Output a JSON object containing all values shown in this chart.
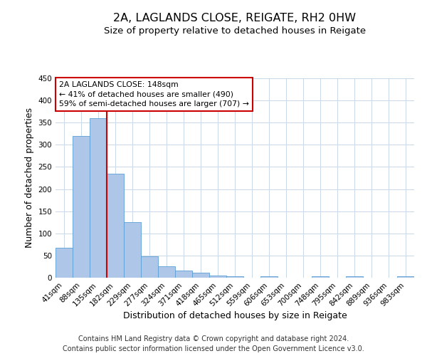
{
  "title": "2A, LAGLANDS CLOSE, REIGATE, RH2 0HW",
  "subtitle": "Size of property relative to detached houses in Reigate",
  "xlabel": "Distribution of detached houses by size in Reigate",
  "ylabel": "Number of detached properties",
  "bar_labels": [
    "41sqm",
    "88sqm",
    "135sqm",
    "182sqm",
    "229sqm",
    "277sqm",
    "324sqm",
    "371sqm",
    "418sqm",
    "465sqm",
    "512sqm",
    "559sqm",
    "606sqm",
    "653sqm",
    "700sqm",
    "748sqm",
    "795sqm",
    "842sqm",
    "889sqm",
    "936sqm",
    "983sqm"
  ],
  "bar_values": [
    67,
    320,
    360,
    235,
    126,
    49,
    25,
    16,
    12,
    5,
    3,
    0,
    4,
    0,
    0,
    3,
    0,
    3,
    0,
    0,
    3
  ],
  "bar_color": "#aec6e8",
  "bar_edge_color": "#5a9fd4",
  "ylim": [
    0,
    450
  ],
  "yticks": [
    0,
    50,
    100,
    150,
    200,
    250,
    300,
    350,
    400,
    450
  ],
  "vline_x_index": 2,
  "vline_color": "#cc0000",
  "annotation_title": "2A LAGLANDS CLOSE: 148sqm",
  "annotation_line1": "← 41% of detached houses are smaller (490)",
  "annotation_line2": "59% of semi-detached houses are larger (707) →",
  "annotation_box_color": "#ffffff",
  "annotation_box_edge": "#cc0000",
  "footer1": "Contains HM Land Registry data © Crown copyright and database right 2024.",
  "footer2": "Contains public sector information licensed under the Open Government Licence v3.0.",
  "bg_color": "#ffffff",
  "grid_color": "#c8d8e8",
  "title_fontsize": 11.5,
  "subtitle_fontsize": 9.5,
  "axis_label_fontsize": 9,
  "tick_fontsize": 7.5,
  "footer_fontsize": 7
}
